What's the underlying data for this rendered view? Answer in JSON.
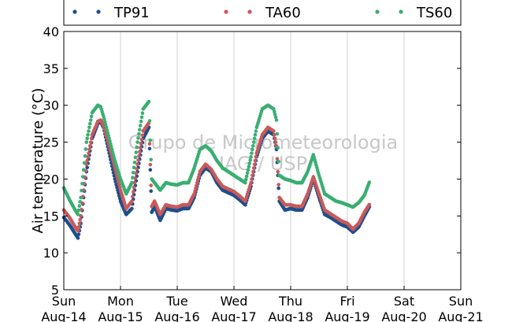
{
  "chart_data": {
    "type": "scatter",
    "ylabel": "Air temperature (°C)",
    "ylim": [
      5,
      40
    ],
    "yticks": [
      5,
      10,
      15,
      20,
      25,
      30,
      35,
      40
    ],
    "xlim": [
      0,
      7
    ],
    "xticks": [
      {
        "x": 0,
        "day": "Sun",
        "date": "Aug-14"
      },
      {
        "x": 1,
        "day": "Mon",
        "date": "Aug-15"
      },
      {
        "x": 2,
        "day": "Tue",
        "date": "Aug-16"
      },
      {
        "x": 3,
        "day": "Wed",
        "date": "Aug-17"
      },
      {
        "x": 4,
        "day": "Thu",
        "date": "Aug-18"
      },
      {
        "x": 5,
        "day": "Fri",
        "date": "Aug-19"
      },
      {
        "x": 6,
        "day": "Sat",
        "date": "Aug-20"
      },
      {
        "x": 7,
        "day": "Sun",
        "date": "Aug-21"
      }
    ],
    "grid": "vertical",
    "legend": "top",
    "watermark": {
      "line1": "Grupo de Micrometeorologia",
      "line2": "IAG / USP"
    },
    "series": [
      {
        "name": "TP91",
        "color": "#1f4e8c",
        "points": [
          [
            0.0,
            14.8
          ],
          [
            0.1,
            13.8
          ],
          [
            0.2,
            12.6
          ],
          [
            0.25,
            12.0
          ],
          [
            0.3,
            14.0
          ],
          [
            0.4,
            21.0
          ],
          [
            0.5,
            25.5
          ],
          [
            0.6,
            27.5
          ],
          [
            0.65,
            27.8
          ],
          [
            0.7,
            27.0
          ],
          [
            0.8,
            23.5
          ],
          [
            0.9,
            20.0
          ],
          [
            1.0,
            17.0
          ],
          [
            1.1,
            15.2
          ],
          [
            1.2,
            16.0
          ],
          [
            1.3,
            21.0
          ],
          [
            1.4,
            25.5
          ],
          [
            1.5,
            27.0
          ],
          [
            1.55,
            15.5
          ],
          [
            1.6,
            16.3
          ],
          [
            1.7,
            14.4
          ],
          [
            1.8,
            16.0
          ],
          [
            1.9,
            15.8
          ],
          [
            2.0,
            15.7
          ],
          [
            2.1,
            16.0
          ],
          [
            2.2,
            16.0
          ],
          [
            2.3,
            17.5
          ],
          [
            2.4,
            20.5
          ],
          [
            2.5,
            21.5
          ],
          [
            2.6,
            21.0
          ],
          [
            2.7,
            19.5
          ],
          [
            2.8,
            18.5
          ],
          [
            3.0,
            17.8
          ],
          [
            3.1,
            17.2
          ],
          [
            3.2,
            16.5
          ],
          [
            3.3,
            19.0
          ],
          [
            3.4,
            23.0
          ],
          [
            3.5,
            25.5
          ],
          [
            3.6,
            26.5
          ],
          [
            3.7,
            26.0
          ],
          [
            3.75,
            24.0
          ],
          [
            3.8,
            17.0
          ],
          [
            3.9,
            15.8
          ],
          [
            4.0,
            16.0
          ],
          [
            4.1,
            15.8
          ],
          [
            4.2,
            15.8
          ],
          [
            4.3,
            17.5
          ],
          [
            4.4,
            20.0
          ],
          [
            4.5,
            17.5
          ],
          [
            4.6,
            15.2
          ],
          [
            4.7,
            14.8
          ],
          [
            4.8,
            14.3
          ],
          [
            4.9,
            13.8
          ],
          [
            5.0,
            13.5
          ],
          [
            5.1,
            12.8
          ],
          [
            5.2,
            13.5
          ],
          [
            5.3,
            15.0
          ],
          [
            5.4,
            16.4
          ]
        ]
      },
      {
        "name": "TA60",
        "color": "#c85a5a",
        "points": [
          [
            0.0,
            15.8
          ],
          [
            0.1,
            14.8
          ],
          [
            0.2,
            13.5
          ],
          [
            0.25,
            13.0
          ],
          [
            0.3,
            15.0
          ],
          [
            0.4,
            22.0
          ],
          [
            0.5,
            26.0
          ],
          [
            0.6,
            27.8
          ],
          [
            0.65,
            28.0
          ],
          [
            0.7,
            27.3
          ],
          [
            0.8,
            24.5
          ],
          [
            0.9,
            21.5
          ],
          [
            1.0,
            18.5
          ],
          [
            1.1,
            16.0
          ],
          [
            1.2,
            17.0
          ],
          [
            1.3,
            22.0
          ],
          [
            1.4,
            26.5
          ],
          [
            1.5,
            27.6
          ],
          [
            1.55,
            16.3
          ],
          [
            1.6,
            17.0
          ],
          [
            1.7,
            15.2
          ],
          [
            1.8,
            16.5
          ],
          [
            1.9,
            16.3
          ],
          [
            2.0,
            16.2
          ],
          [
            2.1,
            16.5
          ],
          [
            2.2,
            16.5
          ],
          [
            2.3,
            18.0
          ],
          [
            2.4,
            21.0
          ],
          [
            2.5,
            22.0
          ],
          [
            2.6,
            21.3
          ],
          [
            2.7,
            20.0
          ],
          [
            2.8,
            19.0
          ],
          [
            3.0,
            18.3
          ],
          [
            3.1,
            17.7
          ],
          [
            3.2,
            17.0
          ],
          [
            3.3,
            19.5
          ],
          [
            3.4,
            23.5
          ],
          [
            3.5,
            26.0
          ],
          [
            3.6,
            27.0
          ],
          [
            3.7,
            26.5
          ],
          [
            3.75,
            24.5
          ],
          [
            3.8,
            17.5
          ],
          [
            3.9,
            16.5
          ],
          [
            4.0,
            16.5
          ],
          [
            4.1,
            16.3
          ],
          [
            4.2,
            16.3
          ],
          [
            4.3,
            18.0
          ],
          [
            4.4,
            20.3
          ],
          [
            4.5,
            18.0
          ],
          [
            4.6,
            15.8
          ],
          [
            4.7,
            15.3
          ],
          [
            4.8,
            14.8
          ],
          [
            4.9,
            14.3
          ],
          [
            5.0,
            14.0
          ],
          [
            5.1,
            13.2
          ],
          [
            5.2,
            14.0
          ],
          [
            5.3,
            15.5
          ],
          [
            5.4,
            16.7
          ]
        ]
      },
      {
        "name": "TS60",
        "color": "#3aae72",
        "points": [
          [
            0.0,
            18.8
          ],
          [
            0.1,
            17.2
          ],
          [
            0.2,
            15.8
          ],
          [
            0.25,
            15.2
          ],
          [
            0.3,
            17.5
          ],
          [
            0.4,
            25.0
          ],
          [
            0.5,
            29.0
          ],
          [
            0.6,
            30.0
          ],
          [
            0.65,
            29.8
          ],
          [
            0.7,
            28.5
          ],
          [
            0.8,
            25.5
          ],
          [
            0.9,
            22.5
          ],
          [
            1.0,
            20.0
          ],
          [
            1.1,
            18.0
          ],
          [
            1.2,
            19.5
          ],
          [
            1.3,
            25.0
          ],
          [
            1.4,
            29.5
          ],
          [
            1.5,
            30.5
          ],
          [
            1.55,
            20.0
          ],
          [
            1.6,
            19.5
          ],
          [
            1.7,
            18.5
          ],
          [
            1.8,
            19.5
          ],
          [
            1.9,
            19.3
          ],
          [
            2.0,
            19.2
          ],
          [
            2.1,
            19.5
          ],
          [
            2.2,
            19.5
          ],
          [
            2.3,
            21.5
          ],
          [
            2.4,
            24.0
          ],
          [
            2.5,
            24.5
          ],
          [
            2.6,
            23.8
          ],
          [
            2.7,
            22.5
          ],
          [
            2.8,
            21.5
          ],
          [
            3.0,
            20.5
          ],
          [
            3.1,
            20.0
          ],
          [
            3.2,
            19.5
          ],
          [
            3.3,
            23.0
          ],
          [
            3.4,
            27.0
          ],
          [
            3.5,
            29.5
          ],
          [
            3.6,
            30.0
          ],
          [
            3.7,
            29.5
          ],
          [
            3.75,
            28.0
          ],
          [
            3.8,
            20.5
          ],
          [
            3.9,
            20.0
          ],
          [
            4.0,
            19.8
          ],
          [
            4.1,
            19.5
          ],
          [
            4.2,
            19.5
          ],
          [
            4.3,
            21.0
          ],
          [
            4.4,
            23.3
          ],
          [
            4.5,
            20.5
          ],
          [
            4.6,
            18.0
          ],
          [
            4.7,
            17.5
          ],
          [
            4.8,
            17.0
          ],
          [
            4.9,
            16.8
          ],
          [
            5.0,
            16.5
          ],
          [
            5.1,
            16.2
          ],
          [
            5.2,
            16.8
          ],
          [
            5.3,
            17.8
          ],
          [
            5.4,
            19.8
          ]
        ]
      }
    ]
  }
}
